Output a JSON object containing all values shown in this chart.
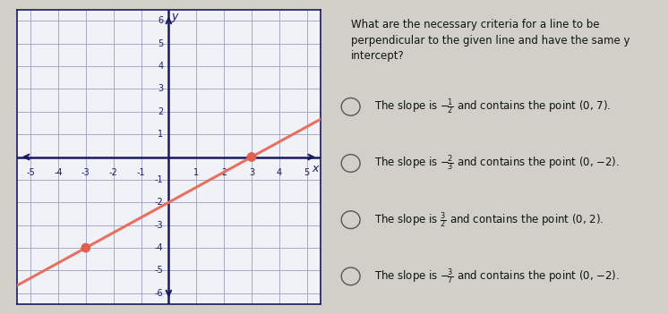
{
  "title_line1": "What are the necessary criteria for a line to be",
  "title_line2": "perpendicular to the given line and have the same y",
  "title_line3": "intercept?",
  "option_texts": [
    [
      "The slope is ",
      "-\\frac{1}{2}",
      " and contains the point (0, 7)."
    ],
    [
      "The slope is ",
      "-\\frac{2}{3}",
      " and contains the point (0, -2)."
    ],
    [
      "The slope is ",
      "\\frac{3}{2}",
      " and contains the point (0, 2)."
    ],
    [
      "The slope is ",
      "-\\frac{3}{7}",
      " and contains the point (0, -2)."
    ]
  ],
  "outer_bg": "#d0d0c8",
  "graph_frame_bg": "#ffffff",
  "graph_bg": "#f0f2f8",
  "right_bg": "#d8d8d0",
  "line_color": "#e87060",
  "line_width": 2.2,
  "dot_color": "#e06050",
  "dot_size": 60,
  "axis_color": "#1a1a60",
  "grid_color": "#9aa0c0",
  "grid_lw": 0.6,
  "xlim": [
    -5.5,
    5.5
  ],
  "ylim": [
    -6.5,
    6.5
  ],
  "xticks": [
    -5,
    -4,
    -3,
    -2,
    -1,
    1,
    2,
    3,
    4,
    5
  ],
  "yticks": [
    -6,
    -5,
    -4,
    -3,
    -2,
    -1,
    1,
    2,
    3,
    4,
    5,
    6
  ],
  "slope": 0.6667,
  "intercept": -2.0,
  "point1": [
    -3,
    -4
  ],
  "point2": [
    3,
    0
  ],
  "x_label": "x",
  "y_label": "y",
  "tick_fontsize": 7,
  "label_fontsize": 9,
  "title_fontsize": 8.5,
  "option_fontsize": 8.5
}
